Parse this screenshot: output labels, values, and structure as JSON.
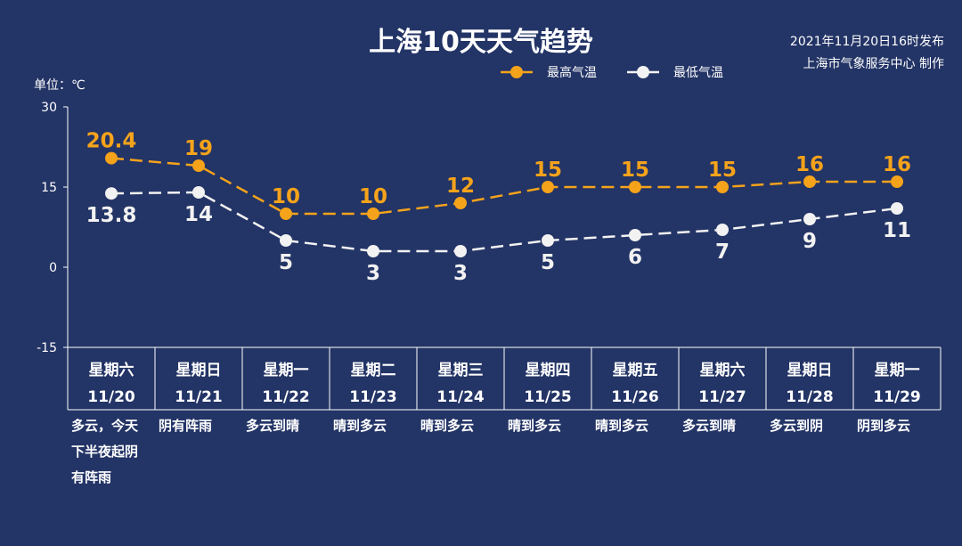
{
  "chart_data": {
    "type": "line",
    "title": "上海10天天气趋势",
    "publish_time": "2021年11月20日16时发布",
    "publisher": "上海市气象服务中心 制作",
    "unit": "单位：℃",
    "ylim": [
      -15,
      30
    ],
    "yticks": [
      "30",
      "15",
      "0",
      "-15"
    ],
    "legend_position": "top",
    "categories": [
      {
        "weekday": "星期六",
        "date": "11/20",
        "weather": [
          "多云，今天",
          "下半夜起阴",
          "有阵雨"
        ]
      },
      {
        "weekday": "星期日",
        "date": "11/21",
        "weather": [
          "阴有阵雨"
        ]
      },
      {
        "weekday": "星期一",
        "date": "11/22",
        "weather": [
          "多云到晴"
        ]
      },
      {
        "weekday": "星期二",
        "date": "11/23",
        "weather": [
          "晴到多云"
        ]
      },
      {
        "weekday": "星期三",
        "date": "11/24",
        "weather": [
          "晴到多云"
        ]
      },
      {
        "weekday": "星期四",
        "date": "11/25",
        "weather": [
          "晴到多云"
        ]
      },
      {
        "weekday": "星期五",
        "date": "11/26",
        "weather": [
          "晴到多云"
        ]
      },
      {
        "weekday": "星期六",
        "date": "11/27",
        "weather": [
          "多云到晴"
        ]
      },
      {
        "weekday": "星期日",
        "date": "11/28",
        "weather": [
          "多云到阴"
        ]
      },
      {
        "weekday": "星期一",
        "date": "11/29",
        "weather": [
          "阴到多云"
        ]
      }
    ],
    "series": [
      {
        "name": "最高气温",
        "color": "#f5a31b",
        "label_position": "above",
        "values": [
          20.4,
          19,
          10,
          10,
          12,
          15,
          15,
          15,
          16,
          16
        ],
        "labels": [
          "20.4",
          "19",
          "10",
          "10",
          "12",
          "15",
          "15",
          "15",
          "16",
          "16"
        ]
      },
      {
        "name": "最低气温",
        "color": "#f2f2f2",
        "label_position": "below",
        "values": [
          13.8,
          14,
          5,
          3,
          3,
          5,
          6,
          7,
          9,
          11
        ],
        "labels": [
          "13.8",
          "14",
          "5",
          "3",
          "3",
          "5",
          "6",
          "7",
          "9",
          "11"
        ]
      }
    ]
  }
}
